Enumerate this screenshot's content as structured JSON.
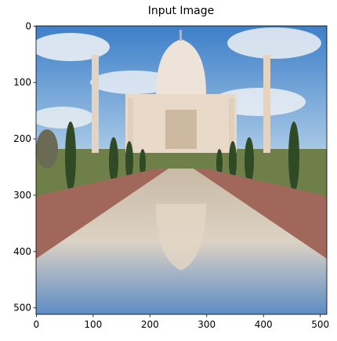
{
  "chart_data": {
    "type": "image",
    "title": "Input Image",
    "xlim": [
      -0.5,
      511.5
    ],
    "ylim": [
      511.5,
      -0.5
    ],
    "xticks": [
      0,
      100,
      200,
      300,
      400,
      500
    ],
    "yticks": [
      0,
      100,
      200,
      300,
      400,
      500
    ]
  }
}
